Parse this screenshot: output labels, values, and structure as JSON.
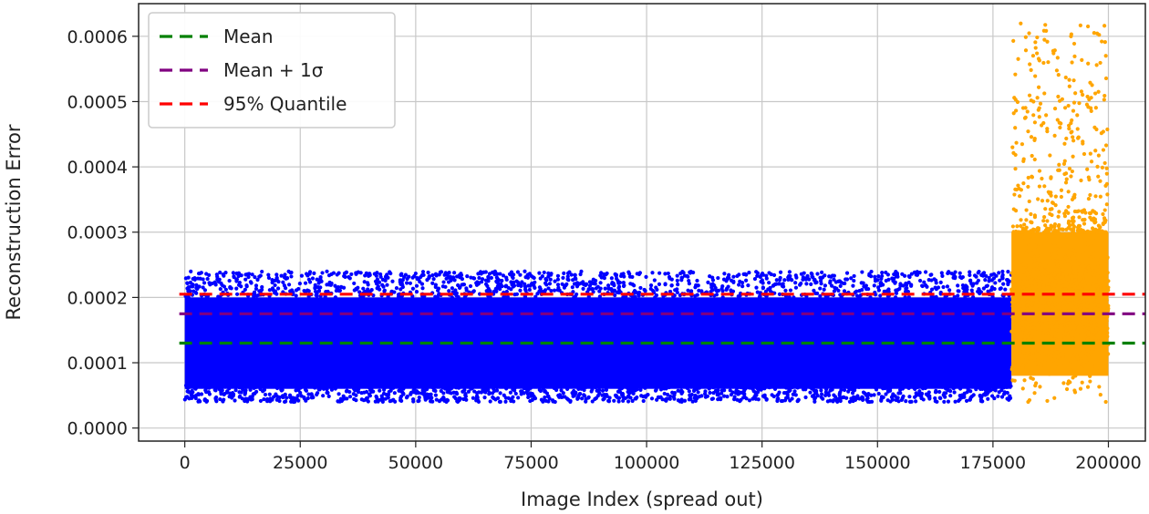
{
  "chart_data": {
    "type": "scatter",
    "xlabel": "Image Index (spread out)",
    "ylabel": "Reconstruction Error",
    "xlim": [
      -10000,
      208000
    ],
    "ylim": [
      -2e-05,
      0.00065
    ],
    "xticks": [
      0,
      25000,
      50000,
      75000,
      100000,
      125000,
      150000,
      175000,
      200000
    ],
    "xtick_labels": [
      "0",
      "25000",
      "50000",
      "75000",
      "100000",
      "125000",
      "150000",
      "175000",
      "200000"
    ],
    "yticks": [
      0.0,
      0.0001,
      0.0002,
      0.0003,
      0.0004,
      0.0005,
      0.0006
    ],
    "ytick_labels": [
      "0.0000",
      "0.0001",
      "0.0002",
      "0.0003",
      "0.0004",
      "0.0005",
      "0.0006"
    ],
    "grid": true,
    "legend_position": "top-left",
    "reference_lines": [
      {
        "name": "Mean",
        "y": 0.00013,
        "color": "#008000",
        "style": "dashed"
      },
      {
        "name": "Mean + 1σ",
        "y": 0.000175,
        "color": "#800080",
        "style": "dashed"
      },
      {
        "name": "95% Quantile",
        "y": 0.000205,
        "color": "#ff0000",
        "style": "dashed"
      }
    ],
    "series": [
      {
        "color": "#0000ff",
        "x_range": [
          0,
          179000
        ],
        "y_range": [
          4e-05,
          0.00024
        ],
        "typical_range": [
          6e-05,
          0.0002
        ]
      },
      {
        "color": "#ffa500",
        "x_range": [
          179000,
          200000
        ],
        "y_range": [
          4e-05,
          0.00062
        ],
        "typical_range": [
          8e-05,
          0.0003
        ]
      }
    ]
  }
}
